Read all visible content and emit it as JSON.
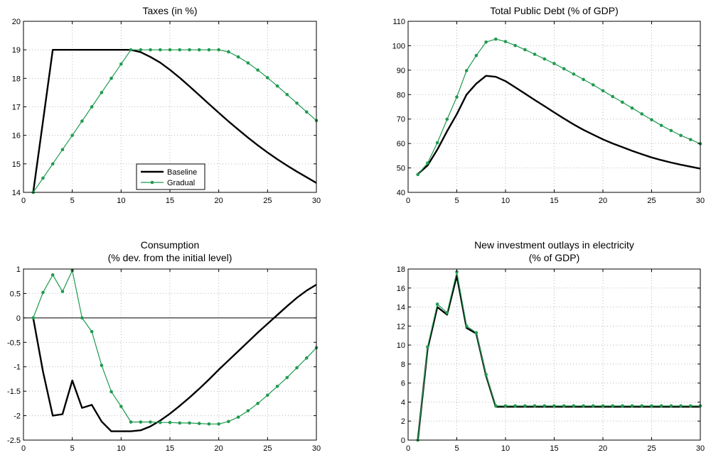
{
  "chart_data": [
    {
      "type": "line",
      "title": "Taxes (in %)",
      "xlim": [
        0,
        30
      ],
      "ylim": [
        14,
        20
      ],
      "xticks": [
        0,
        5,
        10,
        15,
        20,
        25,
        30
      ],
      "yticks": [
        14,
        15,
        16,
        17,
        18,
        19,
        20
      ],
      "grid": true,
      "legend": "lower-center",
      "series": [
        {
          "name": "Baseline",
          "color": "#000000",
          "markers": false,
          "x": [
            1,
            2,
            3,
            4,
            5,
            6,
            7,
            8,
            9,
            10,
            11,
            12,
            13,
            14,
            15,
            16,
            17,
            18,
            19,
            20,
            21,
            22,
            23,
            24,
            25,
            26,
            27,
            28,
            29,
            30
          ],
          "values": [
            14.0,
            16.5,
            19.0,
            19.0,
            19.0,
            19.0,
            19.0,
            19.0,
            19.0,
            19.0,
            19.0,
            18.92,
            18.75,
            18.55,
            18.3,
            18.02,
            17.72,
            17.41,
            17.1,
            16.79,
            16.49,
            16.2,
            15.92,
            15.65,
            15.4,
            15.16,
            14.94,
            14.73,
            14.53,
            14.33
          ]
        },
        {
          "name": "Gradual",
          "color": "#1f9a4f",
          "markers": true,
          "x": [
            1,
            2,
            3,
            4,
            5,
            6,
            7,
            8,
            9,
            10,
            11,
            12,
            13,
            14,
            15,
            16,
            17,
            18,
            19,
            20,
            21,
            22,
            23,
            24,
            25,
            26,
            27,
            28,
            29,
            30
          ],
          "values": [
            14.0,
            14.5,
            15.0,
            15.5,
            16.0,
            16.5,
            17.0,
            17.5,
            18.0,
            18.5,
            19.0,
            19.0,
            19.0,
            19.0,
            19.0,
            19.0,
            19.0,
            19.0,
            19.0,
            19.0,
            18.93,
            18.75,
            18.54,
            18.29,
            18.02,
            17.73,
            17.43,
            17.13,
            16.82,
            16.52
          ]
        }
      ]
    },
    {
      "type": "line",
      "title": "Total Public Debt (% of GDP)",
      "xlim": [
        0,
        30
      ],
      "ylim": [
        40,
        110
      ],
      "xticks": [
        0,
        5,
        10,
        15,
        20,
        25,
        30
      ],
      "yticks": [
        40,
        50,
        60,
        70,
        80,
        90,
        100,
        110
      ],
      "grid": true,
      "series": [
        {
          "name": "Baseline",
          "color": "#000000",
          "markers": false,
          "x": [
            1,
            2,
            3,
            4,
            5,
            6,
            7,
            8,
            9,
            10,
            11,
            12,
            13,
            14,
            15,
            16,
            17,
            18,
            19,
            20,
            21,
            22,
            23,
            24,
            25,
            26,
            27,
            28,
            29,
            30
          ],
          "values": [
            47.5,
            51,
            57.5,
            65,
            72,
            80,
            84.5,
            87.7,
            87.3,
            85.5,
            83,
            80.4,
            77.8,
            75.3,
            72.7,
            70.2,
            67.8,
            65.6,
            63.6,
            61.7,
            60.0,
            58.5,
            57.0,
            55.6,
            54.3,
            53.2,
            52.2,
            51.3,
            50.5,
            49.7
          ]
        },
        {
          "name": "Gradual",
          "color": "#1f9a4f",
          "markers": true,
          "x": [
            1,
            2,
            3,
            4,
            5,
            6,
            7,
            8,
            9,
            10,
            11,
            12,
            13,
            14,
            15,
            16,
            17,
            18,
            19,
            20,
            21,
            22,
            23,
            24,
            25,
            26,
            27,
            28,
            29,
            30
          ],
          "values": [
            47.3,
            52,
            60.3,
            69.9,
            79,
            89.8,
            96,
            101.5,
            102.7,
            101.7,
            100.1,
            98.4,
            96.5,
            94.6,
            92.7,
            90.6,
            88.4,
            86.2,
            84,
            81.6,
            79.2,
            76.9,
            74.5,
            72.1,
            69.7,
            67.4,
            65.3,
            63.3,
            61.6,
            59.9
          ]
        }
      ]
    },
    {
      "type": "line",
      "title": "Consumption",
      "subtitle": "(% dev. from the initial level)",
      "xlim": [
        0,
        30
      ],
      "ylim": [
        -2.5,
        1
      ],
      "xticks": [
        0,
        5,
        10,
        15,
        20,
        25,
        30
      ],
      "yticks": [
        -2.5,
        -2,
        -1.5,
        -1,
        -0.5,
        0,
        0.5,
        1
      ],
      "grid": true,
      "reference_line": 0,
      "series": [
        {
          "name": "Baseline",
          "color": "#000000",
          "markers": false,
          "x": [
            1,
            2,
            3,
            4,
            5,
            6,
            7,
            8,
            9,
            10,
            11,
            12,
            13,
            14,
            15,
            16,
            17,
            18,
            19,
            20,
            21,
            22,
            23,
            24,
            25,
            26,
            27,
            28,
            29,
            30
          ],
          "values": [
            0,
            -1.1,
            -2.0,
            -1.97,
            -1.28,
            -1.84,
            -1.78,
            -2.12,
            -2.32,
            -2.32,
            -2.32,
            -2.3,
            -2.22,
            -2.1,
            -1.96,
            -1.8,
            -1.63,
            -1.45,
            -1.26,
            -1.06,
            -0.87,
            -0.68,
            -0.49,
            -0.3,
            -0.12,
            0.06,
            0.24,
            0.41,
            0.56,
            0.68
          ]
        },
        {
          "name": "Gradual",
          "color": "#1f9a4f",
          "markers": true,
          "x": [
            1,
            2,
            3,
            4,
            5,
            6,
            7,
            8,
            9,
            10,
            11,
            12,
            13,
            14,
            15,
            16,
            17,
            18,
            19,
            20,
            21,
            22,
            23,
            24,
            25,
            26,
            27,
            28,
            29,
            30
          ],
          "values": [
            0,
            0.52,
            0.88,
            0.54,
            0.97,
            0,
            -0.28,
            -0.97,
            -1.51,
            -1.81,
            -2.13,
            -2.13,
            -2.13,
            -2.14,
            -2.14,
            -2.15,
            -2.15,
            -2.16,
            -2.17,
            -2.17,
            -2.12,
            -2.03,
            -1.9,
            -1.75,
            -1.58,
            -1.4,
            -1.22,
            -1.02,
            -0.82,
            -0.61
          ]
        }
      ]
    },
    {
      "type": "line",
      "title": "New investment outlays in electricity",
      "subtitle": "(% of GDP)",
      "xlim": [
        0,
        30
      ],
      "ylim": [
        0,
        18
      ],
      "xticks": [
        0,
        5,
        10,
        15,
        20,
        25,
        30
      ],
      "yticks": [
        0,
        2,
        4,
        6,
        8,
        10,
        12,
        14,
        16,
        18
      ],
      "grid": true,
      "series": [
        {
          "name": "Baseline",
          "color": "#000000",
          "markers": false,
          "x": [
            1,
            2,
            3,
            4,
            5,
            6,
            7,
            8,
            9,
            10,
            11,
            12,
            13,
            14,
            15,
            16,
            17,
            18,
            19,
            20,
            21,
            22,
            23,
            24,
            25,
            26,
            27,
            28,
            29,
            30
          ],
          "values": [
            0,
            9.6,
            14.0,
            13.2,
            17.3,
            11.8,
            11.2,
            6.8,
            3.5,
            3.5,
            3.5,
            3.5,
            3.5,
            3.5,
            3.5,
            3.5,
            3.5,
            3.5,
            3.5,
            3.5,
            3.5,
            3.5,
            3.5,
            3.5,
            3.5,
            3.5,
            3.5,
            3.5,
            3.5,
            3.5
          ]
        },
        {
          "name": "Gradual",
          "color": "#1f9a4f",
          "markers": true,
          "x": [
            1,
            2,
            3,
            4,
            5,
            6,
            7,
            8,
            9,
            10,
            11,
            12,
            13,
            14,
            15,
            16,
            17,
            18,
            19,
            20,
            21,
            22,
            23,
            24,
            25,
            26,
            27,
            28,
            29,
            30
          ],
          "values": [
            0,
            9.8,
            14.3,
            13.4,
            17.7,
            12.0,
            11.3,
            6.9,
            3.6,
            3.6,
            3.6,
            3.6,
            3.6,
            3.6,
            3.6,
            3.6,
            3.6,
            3.6,
            3.6,
            3.6,
            3.6,
            3.6,
            3.6,
            3.6,
            3.6,
            3.6,
            3.6,
            3.6,
            3.6,
            3.6
          ]
        }
      ]
    }
  ]
}
